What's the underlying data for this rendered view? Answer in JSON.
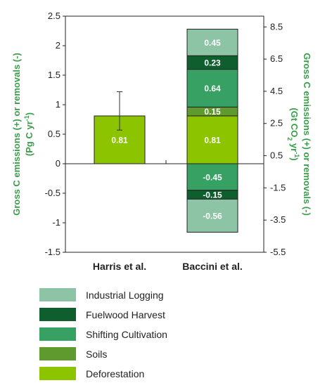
{
  "chart_data": {
    "type": "bar",
    "stacked": true,
    "categories": [
      "Harris et al.",
      "Baccini et al."
    ],
    "ylabel_left": "Gross C emissions (+) or removals (-)",
    "ylabel_left_unit": "(Pg C yr",
    "ylabel_left_unit_sup": "-1",
    "ylabel_left_unit_end": ")",
    "ylabel_right": "Gross C emissions (+) or removals (-)",
    "ylabel_right_unit_a": "(Gt CO",
    "ylabel_right_unit_sub": "2",
    "ylabel_right_unit_b": " yr",
    "ylabel_right_unit_sup": "-1",
    "ylabel_right_unit_end": ")",
    "ylim": [
      -1.5,
      2.5
    ],
    "yticks_left": [
      "2.5",
      "2",
      "1.5",
      "1",
      "0.5",
      "0",
      "-0.5",
      "-1",
      "-1.5"
    ],
    "yticks_left_values": [
      2.5,
      2,
      1.5,
      1,
      0.5,
      0,
      -0.5,
      -1,
      -1.5
    ],
    "yticks_right": [
      "8.5",
      "6.5",
      "4.5",
      "2.5",
      "0.5",
      "-1.5",
      "-3.5",
      "-5.5"
    ],
    "yticks_right_values": [
      8.5,
      6.5,
      4.5,
      2.5,
      0.5,
      -1.5,
      -3.5,
      -5.5
    ],
    "right_axis_factor": 3.667,
    "series": [
      {
        "name": "Deforestation",
        "color": "#8dc400",
        "values": [
          0.81,
          0.81
        ],
        "labels": [
          "0.81",
          "0.81"
        ]
      },
      {
        "name": "Soils",
        "color": "#5f9a2e",
        "values": [
          null,
          0.15
        ],
        "labels": [
          null,
          "0.15"
        ]
      },
      {
        "name": "Shifting Cultivation",
        "color": "#36a163",
        "values": [
          null,
          0.64
        ],
        "labels": [
          null,
          "0.64"
        ]
      },
      {
        "name": "Fuelwood Harvest",
        "color": "#0f5f2e",
        "values": [
          null,
          0.23
        ],
        "labels": [
          null,
          "0.23"
        ]
      },
      {
        "name": "Industrial Logging",
        "color": "#8cc4a5",
        "values": [
          null,
          0.45
        ],
        "labels": [
          null,
          "0.45"
        ]
      }
    ],
    "removals": [
      {
        "name": "Shifting Cultivation",
        "color": "#36a163",
        "category": "Baccini et al.",
        "value": -0.45,
        "label": "-0.45"
      },
      {
        "name": "Fuelwood Harvest",
        "color": "#0f5f2e",
        "category": "Baccini et al.",
        "value": -0.15,
        "label": "-0.15"
      },
      {
        "name": "Industrial Logging",
        "color": "#8cc4a5",
        "category": "Baccini et al.",
        "value": -0.56,
        "label": "-0.56"
      }
    ],
    "error_bar": {
      "category": "Harris et al.",
      "low": 0.57,
      "high": 1.22
    },
    "legend": {
      "position": "bottom-left",
      "items": [
        {
          "name": "Industrial Logging",
          "color": "#8cc4a5"
        },
        {
          "name": "Fuelwood Harvest",
          "color": "#0f5f2e"
        },
        {
          "name": "Shifting Cultivation",
          "color": "#36a163"
        },
        {
          "name": "Soils",
          "color": "#5f9a2e"
        },
        {
          "name": "Deforestation",
          "color": "#8dc400"
        }
      ]
    },
    "axis_title_color": "#3a9d4a",
    "grid": false
  }
}
